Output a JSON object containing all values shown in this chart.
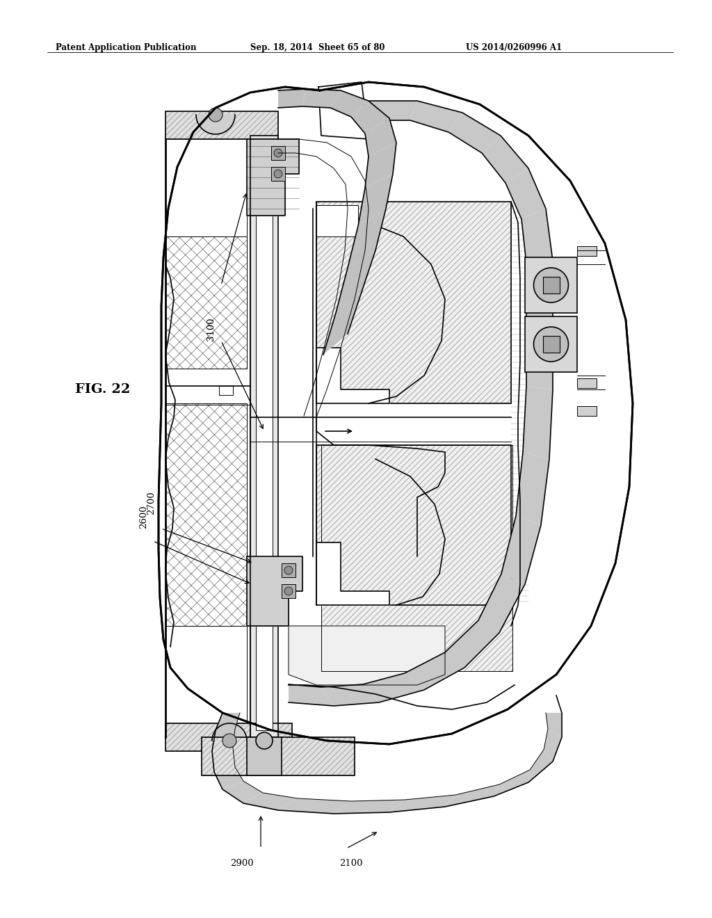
{
  "header_left": "Patent Application Publication",
  "header_mid": "Sep. 18, 2014  Sheet 65 of 80",
  "header_right": "US 2014/0260996 A1",
  "fig_label": "FIG. 22",
  "bg_color": "#ffffff",
  "line_color": "#000000",
  "gray_light": "#cccccc",
  "gray_med": "#aaaaaa",
  "gray_dark": "#888888",
  "gray_fill": "#b8b8b8",
  "hatch_gray": "#d8d8d8"
}
